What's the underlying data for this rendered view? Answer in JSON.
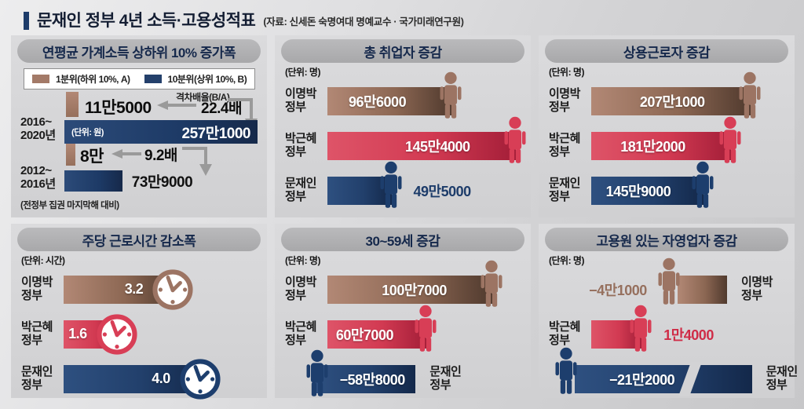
{
  "page": {
    "title": "문재인 정부 4년 소득·고용성적표",
    "source": "(자료: 신세돈 숙명여대 명예교수 · 국가미래연구원)"
  },
  "palette": {
    "brown": "#9c7363",
    "red": "#d5405a",
    "navy": "#1d3c6a",
    "header_pill": "#b2b2b4",
    "page_bg": "#d9d9db",
    "bar_value_text": "#ffffff",
    "arrow_gray": "#9a9a9a"
  },
  "chart_data": [
    {
      "type": "bar",
      "title": "연평균 가계소득 상하위 10% 증가폭",
      "unit_note": "(단위: 원)",
      "legend": [
        {
          "label": "1분위(하위 10%, A)",
          "color": "#a37a68"
        },
        {
          "label": "10분위(상위 10%, B)",
          "color": "#24406b"
        }
      ],
      "gap_ratio_label": "격차배율(B/A)",
      "groups": [
        {
          "period": "2016~ 2020년",
          "q1_label": "11만5000",
          "q1_value": 115000,
          "ratio_label": "22.4배",
          "ratio": 22.4,
          "q10_label": "257만1000",
          "q10_value": 2571000,
          "q10_pct": 100
        },
        {
          "period": "2012~ 2016년",
          "q1_label": "8만",
          "q1_value": 80000,
          "ratio_label": "9.2배",
          "ratio": 9.2,
          "q10_label": "73만9000",
          "q10_value": 739000,
          "q10_pct": 30
        }
      ],
      "footnote": "(전정부 집권 마지막해 대비)"
    },
    {
      "type": "bar",
      "title": "총 취업자 증감",
      "unit_label": "(단위: 명)",
      "categories": [
        "이명박 정부",
        "박근혜 정부",
        "문재인 정부"
      ],
      "values": [
        966000,
        1454000,
        495000
      ],
      "value_labels": [
        "96만6000",
        "145만4000",
        "49만5000"
      ],
      "bar_pct": [
        64,
        97,
        33
      ],
      "colors": [
        "#9c7363",
        "#d5405a",
        "#1d3c6a"
      ],
      "icon": "person-icon"
    },
    {
      "type": "bar",
      "title": "상용근로자 증감",
      "unit_label": "(단위: 명)",
      "categories": [
        "이명박 정부",
        "박근혜 정부",
        "문재인 정부"
      ],
      "values": [
        2071000,
        1812000,
        1459000
      ],
      "value_labels": [
        "207만1000",
        "181만2000",
        "145만9000"
      ],
      "bar_pct": [
        82,
        72,
        58
      ],
      "colors": [
        "#9c7363",
        "#d5405a",
        "#1d3c6a"
      ],
      "icon": "person-icon"
    },
    {
      "type": "bar",
      "title": "주당 근로시간 감소폭",
      "unit_label": "(단위: 시간)",
      "categories": [
        "이명박 정부",
        "박근혜 정부",
        "문재인 정부"
      ],
      "values": [
        3.2,
        1.6,
        4.0
      ],
      "value_labels": [
        "3.2",
        "1.6",
        "4.0"
      ],
      "bar_pct": [
        58,
        29,
        72
      ],
      "colors": [
        "#9c7363",
        "#d5405a",
        "#1d3c6a"
      ],
      "icon": "clock-icon"
    },
    {
      "type": "bar",
      "title": "30~59세 증감",
      "unit_label": "(단위: 명)",
      "categories": [
        "이명박 정부",
        "박근혜 정부",
        "문재인 정부"
      ],
      "values": [
        1007000,
        607000,
        -588000
      ],
      "value_labels": [
        "100만7000",
        "60만7000",
        "−58만8000"
      ],
      "bar_pct": [
        85,
        51,
        42
      ],
      "colors": [
        "#9c7363",
        "#d5405a",
        "#1d3c6a"
      ],
      "icon": "person-icon"
    },
    {
      "type": "bar",
      "title": "고용원 있는 자영업자 증감",
      "unit_label": "(단위: 명)",
      "categories": [
        "이명박 정부",
        "박근혜 정부",
        "문재인 정부"
      ],
      "values": [
        -41000,
        14000,
        -212000
      ],
      "value_labels": [
        "−4만1000",
        "1만4000",
        "−21만2000"
      ],
      "bar_pct": [
        21,
        26,
        75
      ],
      "colors": [
        "#9c7363",
        "#d5405a",
        "#1d3c6a"
      ],
      "icon": "person-icon",
      "axis_break": true
    }
  ]
}
